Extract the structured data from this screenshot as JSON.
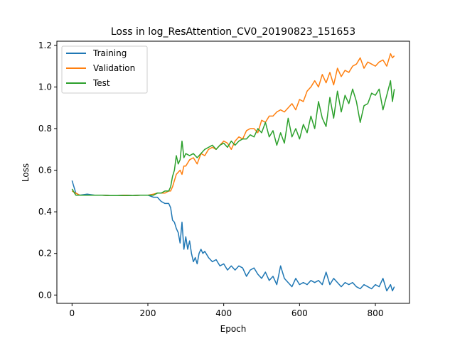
{
  "chart_data": {
    "type": "line",
    "title": "Loss in log_ResAttention_CV0_20190823_151653",
    "xlabel": "Epoch",
    "ylabel": "Loss",
    "xlim": [
      -40,
      890
    ],
    "ylim": [
      -0.04,
      1.22
    ],
    "xticks": [
      0,
      200,
      400,
      600,
      800
    ],
    "yticks": [
      0.0,
      0.2,
      0.4,
      0.6,
      0.8,
      1.0,
      1.2
    ],
    "xtick_labels": [
      "0",
      "200",
      "400",
      "600",
      "800"
    ],
    "ytick_labels": [
      "0.0",
      "0.2",
      "0.4",
      "0.6",
      "0.8",
      "1.0",
      "1.2"
    ],
    "grid": false,
    "legend_position": "upper-left",
    "series": [
      {
        "name": "Training",
        "color": "#1f77b4",
        "x": [
          0,
          10,
          20,
          40,
          60,
          80,
          100,
          120,
          140,
          160,
          180,
          200,
          215,
          225,
          235,
          245,
          255,
          260,
          265,
          270,
          275,
          280,
          285,
          290,
          295,
          300,
          305,
          310,
          315,
          320,
          325,
          330,
          335,
          340,
          345,
          350,
          360,
          370,
          380,
          390,
          400,
          410,
          420,
          430,
          440,
          450,
          460,
          470,
          480,
          490,
          500,
          510,
          520,
          530,
          540,
          550,
          560,
          570,
          580,
          590,
          600,
          610,
          620,
          630,
          640,
          650,
          660,
          670,
          680,
          690,
          700,
          710,
          720,
          730,
          740,
          750,
          760,
          770,
          780,
          790,
          800,
          810,
          820,
          830,
          840,
          845,
          850
        ],
        "y": [
          0.55,
          0.49,
          0.48,
          0.485,
          0.48,
          0.48,
          0.478,
          0.478,
          0.48,
          0.478,
          0.48,
          0.48,
          0.47,
          0.47,
          0.45,
          0.44,
          0.44,
          0.42,
          0.36,
          0.35,
          0.32,
          0.3,
          0.25,
          0.35,
          0.22,
          0.28,
          0.22,
          0.26,
          0.2,
          0.16,
          0.18,
          0.15,
          0.2,
          0.22,
          0.2,
          0.21,
          0.18,
          0.16,
          0.17,
          0.14,
          0.15,
          0.12,
          0.14,
          0.12,
          0.14,
          0.13,
          0.09,
          0.12,
          0.13,
          0.1,
          0.08,
          0.11,
          0.07,
          0.09,
          0.05,
          0.14,
          0.08,
          0.06,
          0.04,
          0.08,
          0.05,
          0.06,
          0.05,
          0.07,
          0.06,
          0.07,
          0.05,
          0.11,
          0.05,
          0.08,
          0.06,
          0.04,
          0.06,
          0.05,
          0.06,
          0.04,
          0.03,
          0.05,
          0.04,
          0.03,
          0.05,
          0.04,
          0.08,
          0.02,
          0.05,
          0.02,
          0.04
        ]
      },
      {
        "name": "Validation",
        "color": "#ff7f0e",
        "x": [
          0,
          10,
          20,
          40,
          60,
          80,
          100,
          120,
          140,
          160,
          180,
          200,
          215,
          225,
          235,
          245,
          255,
          260,
          265,
          270,
          275,
          280,
          285,
          290,
          295,
          300,
          310,
          320,
          330,
          340,
          350,
          360,
          370,
          380,
          390,
          400,
          410,
          420,
          430,
          440,
          450,
          460,
          470,
          480,
          490,
          500,
          510,
          520,
          530,
          540,
          550,
          560,
          570,
          580,
          590,
          600,
          610,
          620,
          630,
          640,
          650,
          660,
          670,
          680,
          690,
          700,
          710,
          720,
          730,
          740,
          750,
          760,
          770,
          780,
          790,
          800,
          810,
          820,
          830,
          840,
          845,
          850
        ],
        "y": [
          0.5,
          0.49,
          0.48,
          0.48,
          0.48,
          0.48,
          0.478,
          0.478,
          0.48,
          0.478,
          0.48,
          0.48,
          0.485,
          0.49,
          0.49,
          0.49,
          0.5,
          0.5,
          0.52,
          0.55,
          0.58,
          0.59,
          0.6,
          0.58,
          0.62,
          0.62,
          0.65,
          0.66,
          0.63,
          0.68,
          0.67,
          0.7,
          0.71,
          0.7,
          0.72,
          0.74,
          0.73,
          0.7,
          0.74,
          0.76,
          0.75,
          0.79,
          0.8,
          0.8,
          0.78,
          0.84,
          0.83,
          0.86,
          0.86,
          0.88,
          0.89,
          0.88,
          0.9,
          0.92,
          0.89,
          0.94,
          0.93,
          0.98,
          1.0,
          1.03,
          1.0,
          1.06,
          1.02,
          1.07,
          1.01,
          1.09,
          1.05,
          1.08,
          1.07,
          1.1,
          1.11,
          1.14,
          1.09,
          1.12,
          1.11,
          1.1,
          1.12,
          1.13,
          1.1,
          1.16,
          1.14,
          1.15
        ]
      },
      {
        "name": "Test",
        "color": "#2ca02c",
        "x": [
          0,
          10,
          20,
          40,
          60,
          80,
          100,
          120,
          140,
          160,
          180,
          200,
          215,
          225,
          235,
          245,
          255,
          260,
          265,
          270,
          275,
          280,
          285,
          290,
          295,
          300,
          310,
          320,
          330,
          340,
          350,
          360,
          370,
          380,
          390,
          400,
          410,
          420,
          430,
          440,
          450,
          460,
          470,
          480,
          490,
          500,
          510,
          520,
          530,
          540,
          550,
          560,
          570,
          580,
          590,
          600,
          610,
          620,
          630,
          640,
          650,
          660,
          670,
          680,
          690,
          700,
          710,
          720,
          730,
          740,
          750,
          760,
          770,
          780,
          790,
          800,
          810,
          820,
          830,
          840,
          845,
          850
        ],
        "y": [
          0.51,
          0.48,
          0.48,
          0.48,
          0.48,
          0.48,
          0.478,
          0.478,
          0.478,
          0.478,
          0.48,
          0.48,
          0.48,
          0.49,
          0.49,
          0.5,
          0.5,
          0.52,
          0.57,
          0.6,
          0.67,
          0.63,
          0.65,
          0.74,
          0.66,
          0.68,
          0.67,
          0.68,
          0.66,
          0.68,
          0.7,
          0.71,
          0.72,
          0.7,
          0.72,
          0.73,
          0.71,
          0.74,
          0.72,
          0.74,
          0.75,
          0.75,
          0.77,
          0.76,
          0.8,
          0.78,
          0.83,
          0.76,
          0.79,
          0.72,
          0.78,
          0.73,
          0.85,
          0.76,
          0.8,
          0.75,
          0.82,
          0.78,
          0.86,
          0.8,
          0.93,
          0.85,
          0.81,
          0.95,
          0.85,
          0.98,
          0.88,
          0.96,
          0.92,
          0.99,
          0.93,
          0.83,
          0.91,
          0.92,
          0.97,
          0.96,
          0.99,
          0.89,
          0.96,
          1.03,
          0.93,
          0.99
        ]
      }
    ]
  }
}
